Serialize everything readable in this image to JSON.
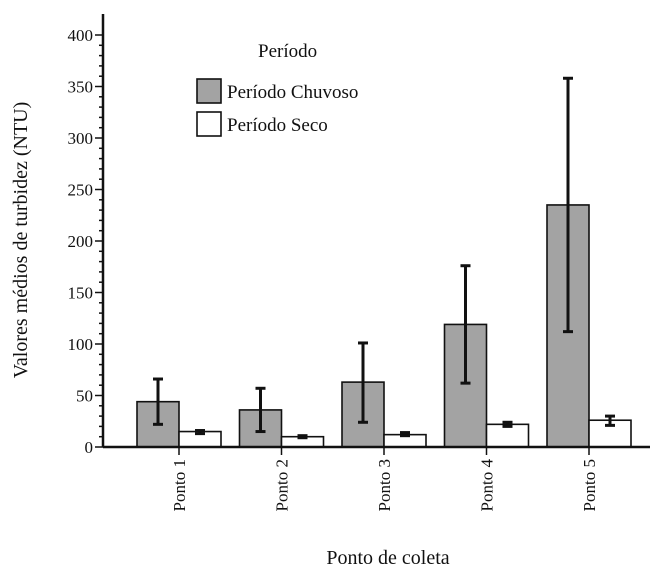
{
  "chart_data": {
    "type": "bar",
    "xlabel": "Ponto de coleta",
    "ylabel": "Valores médios de turbidez (NTU)",
    "categories": [
      "Ponto 1",
      "Ponto 2",
      "Ponto 3",
      "Ponto 4",
      "Ponto 5"
    ],
    "ylim": [
      0,
      410
    ],
    "yticks": [
      0,
      50,
      100,
      150,
      200,
      250,
      300,
      350,
      400
    ],
    "legend_title": "Período",
    "legend_position": "top-left",
    "grid": false,
    "series": [
      {
        "name": "Período Chuvoso",
        "color": "#a3a3a3",
        "values": [
          44,
          36,
          63,
          119,
          235
        ],
        "err_low": [
          22,
          15,
          24,
          62,
          112
        ],
        "err_high": [
          66,
          57,
          101,
          176,
          358
        ]
      },
      {
        "name": "Período Seco",
        "color": "#ffffff",
        "values": [
          15,
          10,
          12,
          22,
          26
        ],
        "err_low": [
          13,
          9,
          11,
          20,
          21
        ],
        "err_high": [
          16,
          11,
          14,
          24,
          30
        ]
      }
    ]
  }
}
